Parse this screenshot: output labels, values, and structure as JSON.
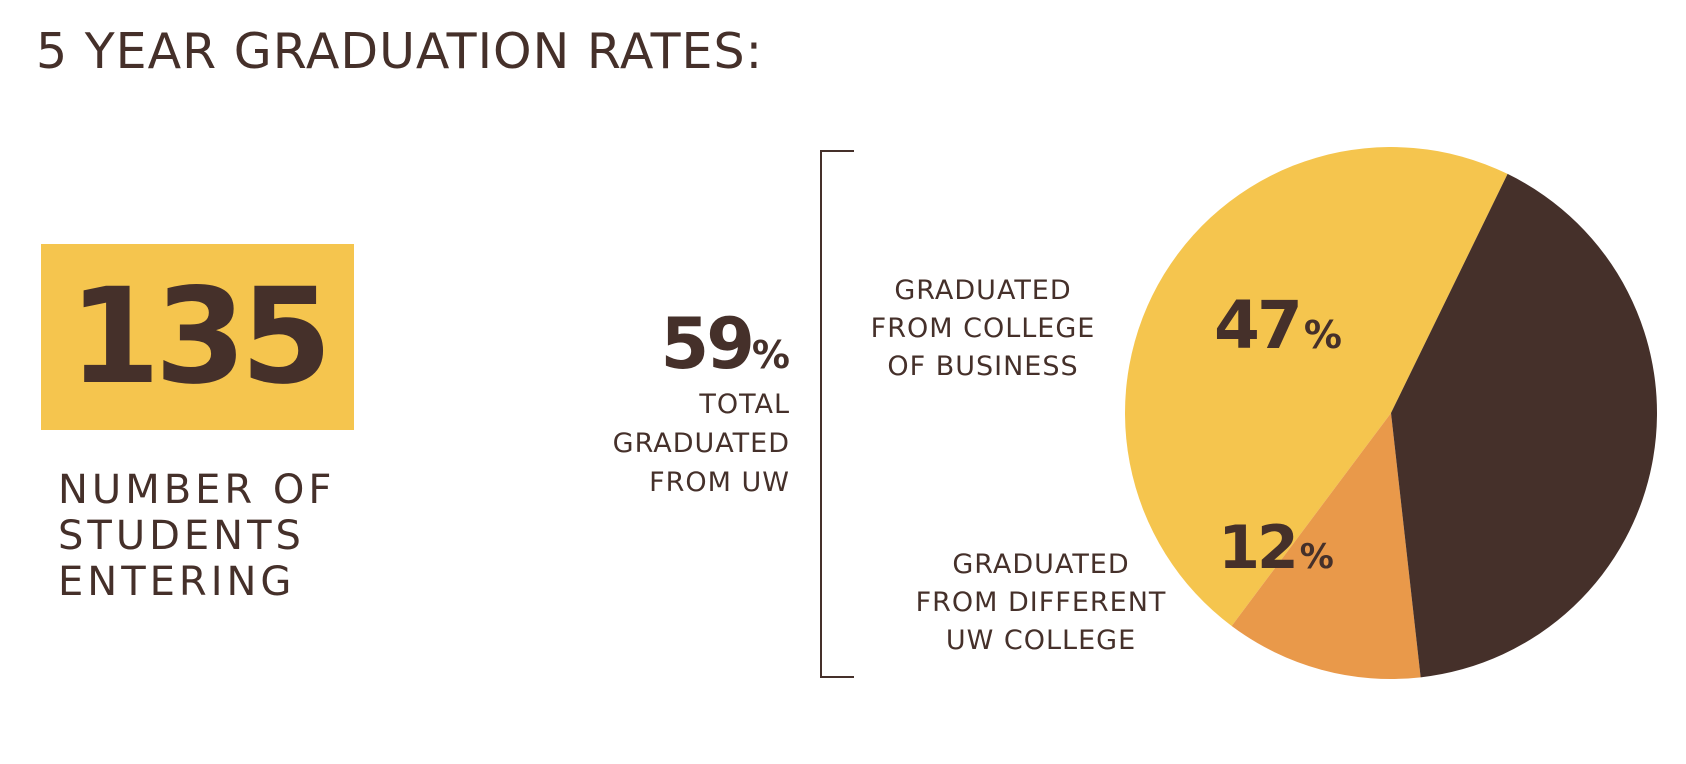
{
  "title": "5 YEAR GRADUATION RATES:",
  "students_entering": {
    "value": "135",
    "label": "NUMBER OF\nSTUDENTS\nENTERING"
  },
  "total_graduated": {
    "value": "59",
    "unit": "%",
    "label": "TOTAL\nGRADUATED\nFROM UW"
  },
  "colors": {
    "college_of_business": "#f5c54e",
    "different_uw_college": "#e9994a",
    "not_graduated": "#45302a",
    "text": "#45302a",
    "box": "#f5c54e"
  },
  "chart_data": {
    "type": "pie",
    "slices": [
      {
        "key": "college_of_business",
        "label": "GRADUATED\nFROM COLLEGE\nOF BUSINESS",
        "value": 47,
        "value_label": "47",
        "unit": "%"
      },
      {
        "key": "different_uw_college",
        "label": "GRADUATED\nFROM DIFFERENT\nUW COLLEGE",
        "value": 12,
        "value_label": "12",
        "unit": "%"
      },
      {
        "key": "not_graduated",
        "label": "",
        "value": 41,
        "value_label": "",
        "unit": ""
      }
    ]
  }
}
